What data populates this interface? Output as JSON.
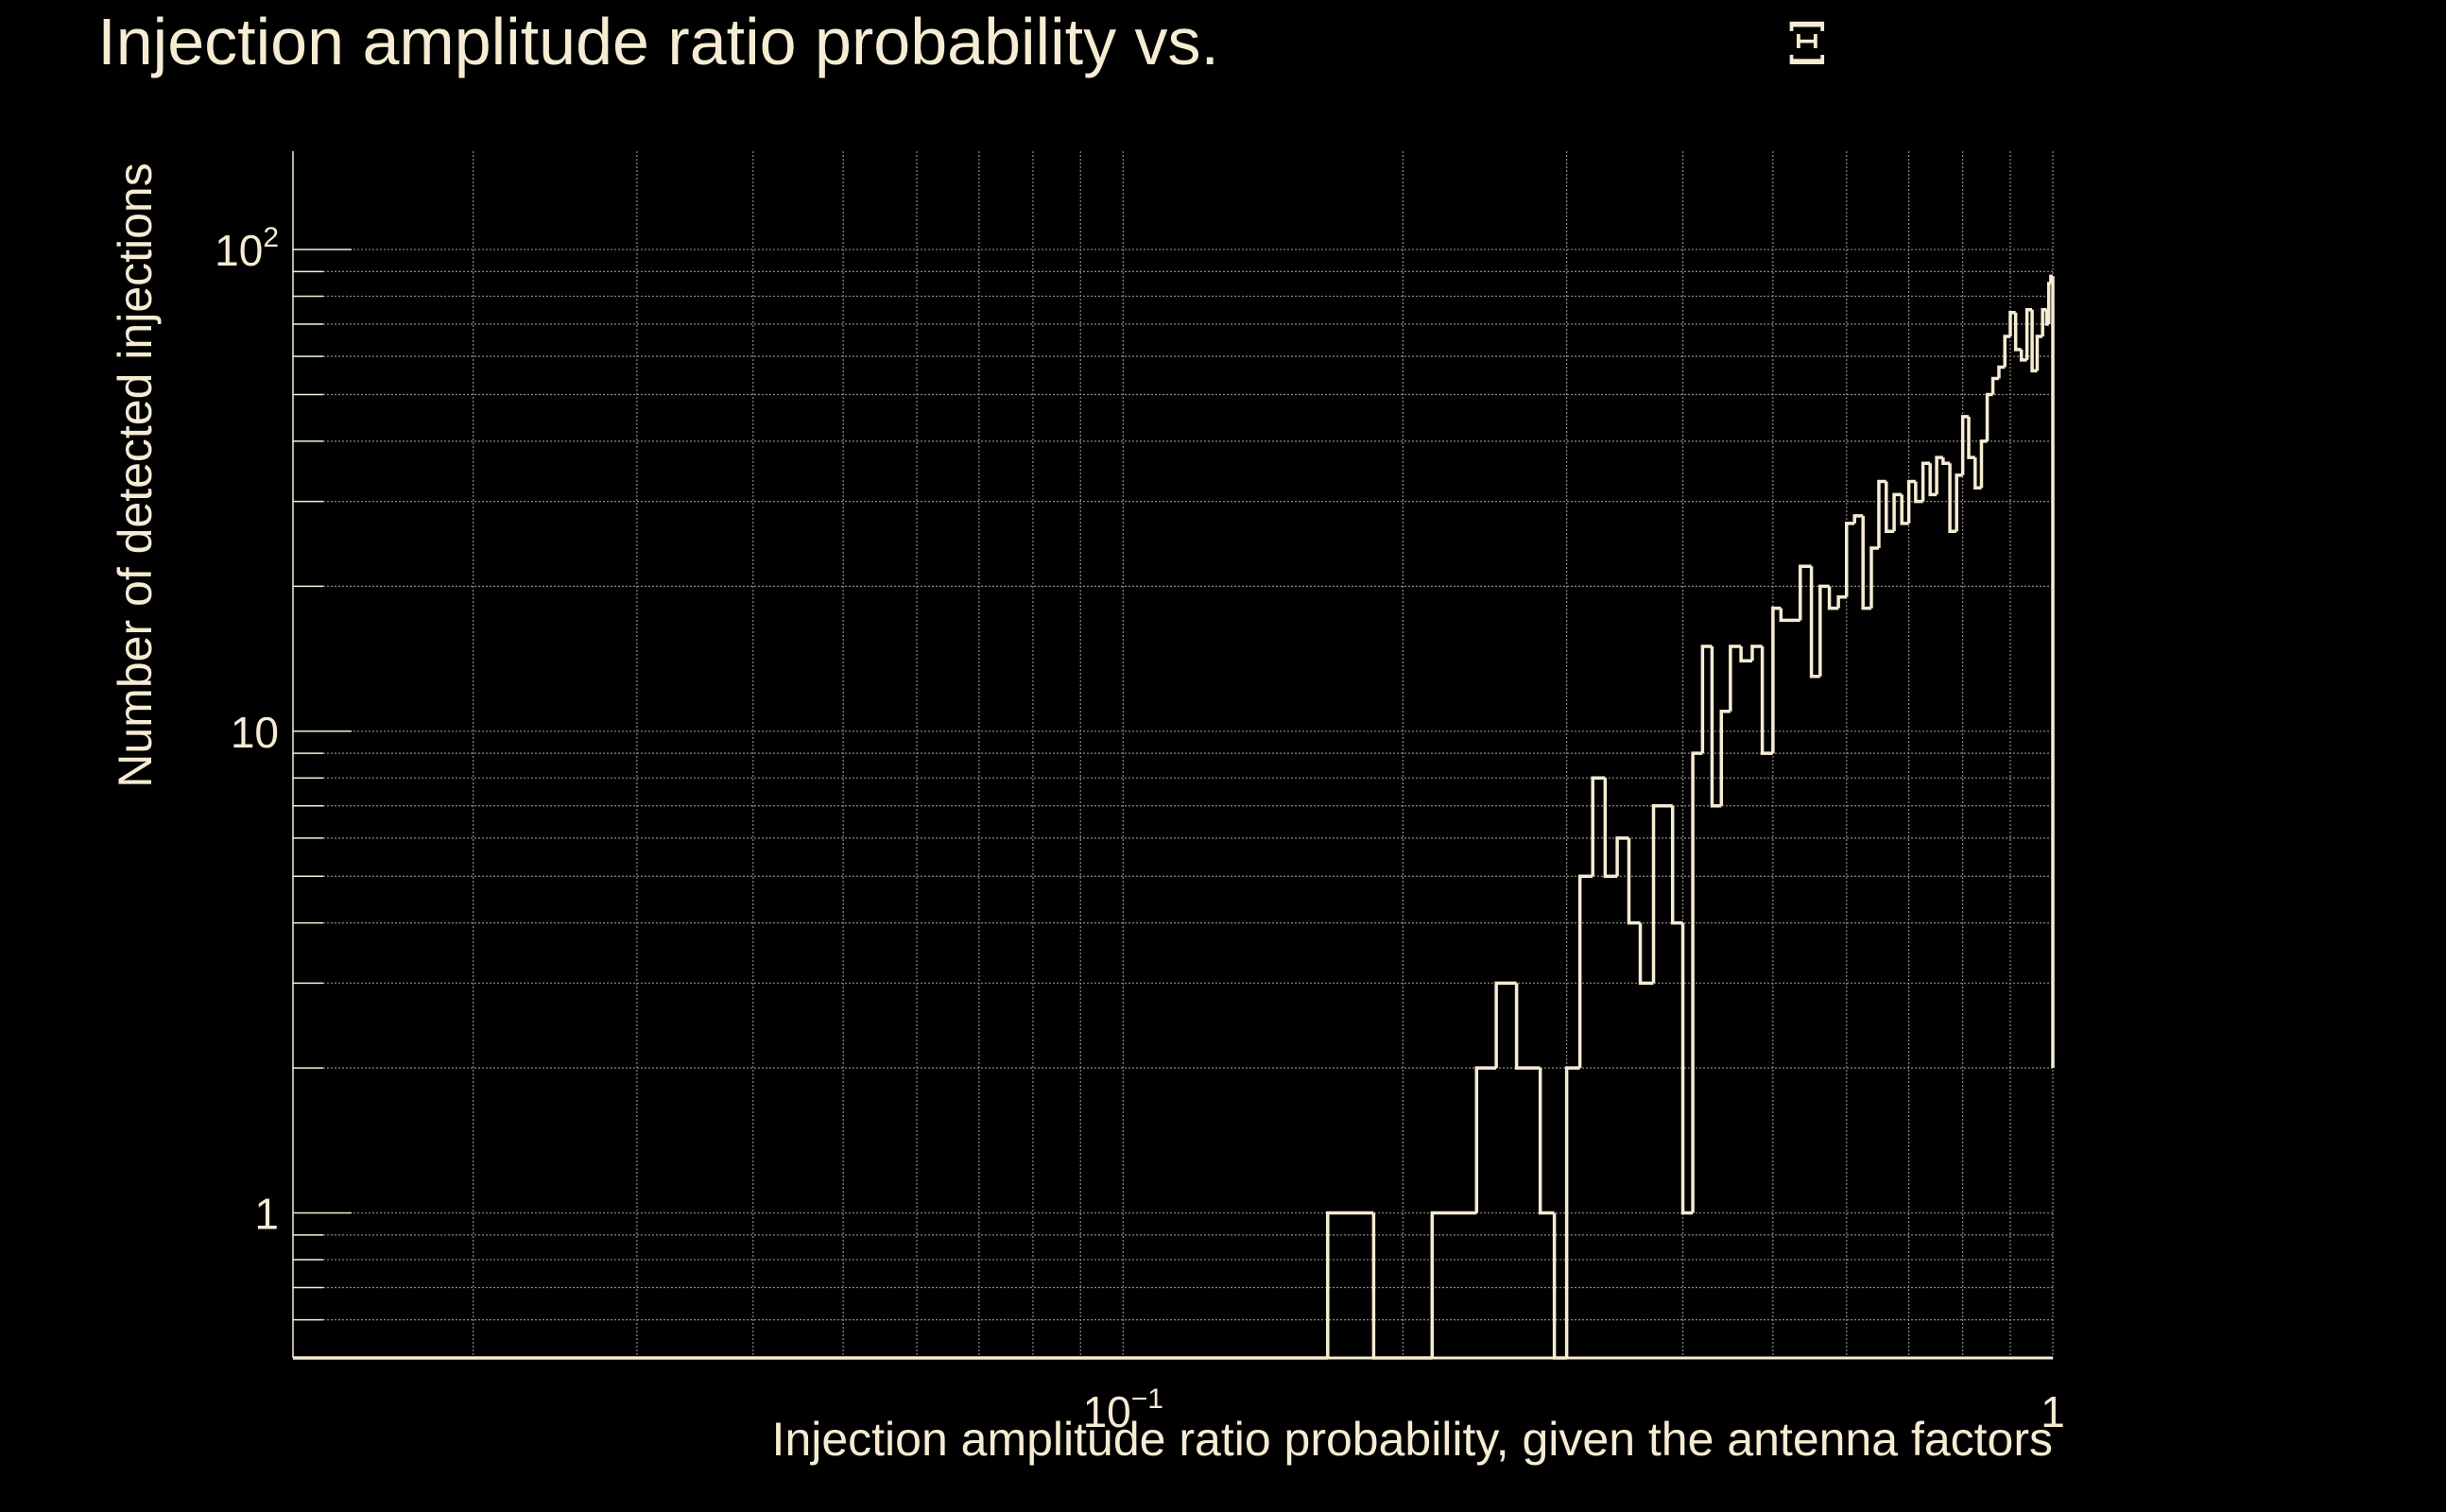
{
  "chart_data": {
    "type": "histogram-step",
    "title": "Injection amplitude ratio probability vs.",
    "title_symbol": "Ξ",
    "xlabel": "Injection amplitude ratio probability, given the antenna factors",
    "ylabel": "Number of detected injections",
    "x_scale": "log",
    "y_scale": "log",
    "xlim": [
      0.0128,
      1.0
    ],
    "ylim": [
      0.5,
      160
    ],
    "x_ticks": [
      {
        "value": 0.1,
        "label": "10",
        "sup": "−1"
      },
      {
        "value": 1,
        "label": "1",
        "sup": ""
      }
    ],
    "y_ticks": [
      {
        "value": 1,
        "label": "1",
        "sup": ""
      },
      {
        "value": 10,
        "label": "10",
        "sup": ""
      },
      {
        "value": 100,
        "label": "10",
        "sup": "2"
      }
    ],
    "grid": true,
    "colors": {
      "background": "#000000",
      "line": "#f5ecd3",
      "grid": "#8a8a80",
      "text": "#f5ecd3"
    },
    "steps": [
      [
        0.0128,
        0
      ],
      [
        0.166,
        1
      ],
      [
        0.186,
        0
      ],
      [
        0.215,
        1
      ],
      [
        0.24,
        2
      ],
      [
        0.252,
        3
      ],
      [
        0.265,
        2
      ],
      [
        0.281,
        1
      ],
      [
        0.291,
        0
      ],
      [
        0.3,
        2
      ],
      [
        0.31,
        5
      ],
      [
        0.32,
        8
      ],
      [
        0.33,
        5
      ],
      [
        0.34,
        6
      ],
      [
        0.35,
        4
      ],
      [
        0.36,
        3
      ],
      [
        0.372,
        7
      ],
      [
        0.39,
        4
      ],
      [
        0.4,
        1
      ],
      [
        0.41,
        9
      ],
      [
        0.42,
        15
      ],
      [
        0.43,
        7
      ],
      [
        0.44,
        11
      ],
      [
        0.45,
        15
      ],
      [
        0.462,
        14
      ],
      [
        0.475,
        15
      ],
      [
        0.487,
        9
      ],
      [
        0.5,
        18
      ],
      [
        0.51,
        17
      ],
      [
        0.535,
        22
      ],
      [
        0.55,
        13
      ],
      [
        0.562,
        20
      ],
      [
        0.575,
        18
      ],
      [
        0.588,
        19
      ],
      [
        0.6,
        27
      ],
      [
        0.612,
        28
      ],
      [
        0.625,
        18
      ],
      [
        0.638,
        24
      ],
      [
        0.65,
        33
      ],
      [
        0.662,
        26
      ],
      [
        0.675,
        31
      ],
      [
        0.688,
        27
      ],
      [
        0.7,
        33
      ],
      [
        0.712,
        30
      ],
      [
        0.725,
        36
      ],
      [
        0.738,
        31
      ],
      [
        0.75,
        37
      ],
      [
        0.762,
        36
      ],
      [
        0.775,
        26
      ],
      [
        0.788,
        34
      ],
      [
        0.8,
        45
      ],
      [
        0.812,
        37
      ],
      [
        0.825,
        32
      ],
      [
        0.838,
        40
      ],
      [
        0.85,
        50
      ],
      [
        0.862,
        54
      ],
      [
        0.875,
        57
      ],
      [
        0.888,
        66
      ],
      [
        0.9,
        74
      ],
      [
        0.912,
        62
      ],
      [
        0.925,
        59
      ],
      [
        0.938,
        75
      ],
      [
        0.95,
        56
      ],
      [
        0.962,
        66
      ],
      [
        0.975,
        75
      ],
      [
        0.985,
        70
      ],
      [
        0.99,
        85
      ],
      [
        0.995,
        88
      ],
      [
        1.0,
        2
      ]
    ]
  }
}
